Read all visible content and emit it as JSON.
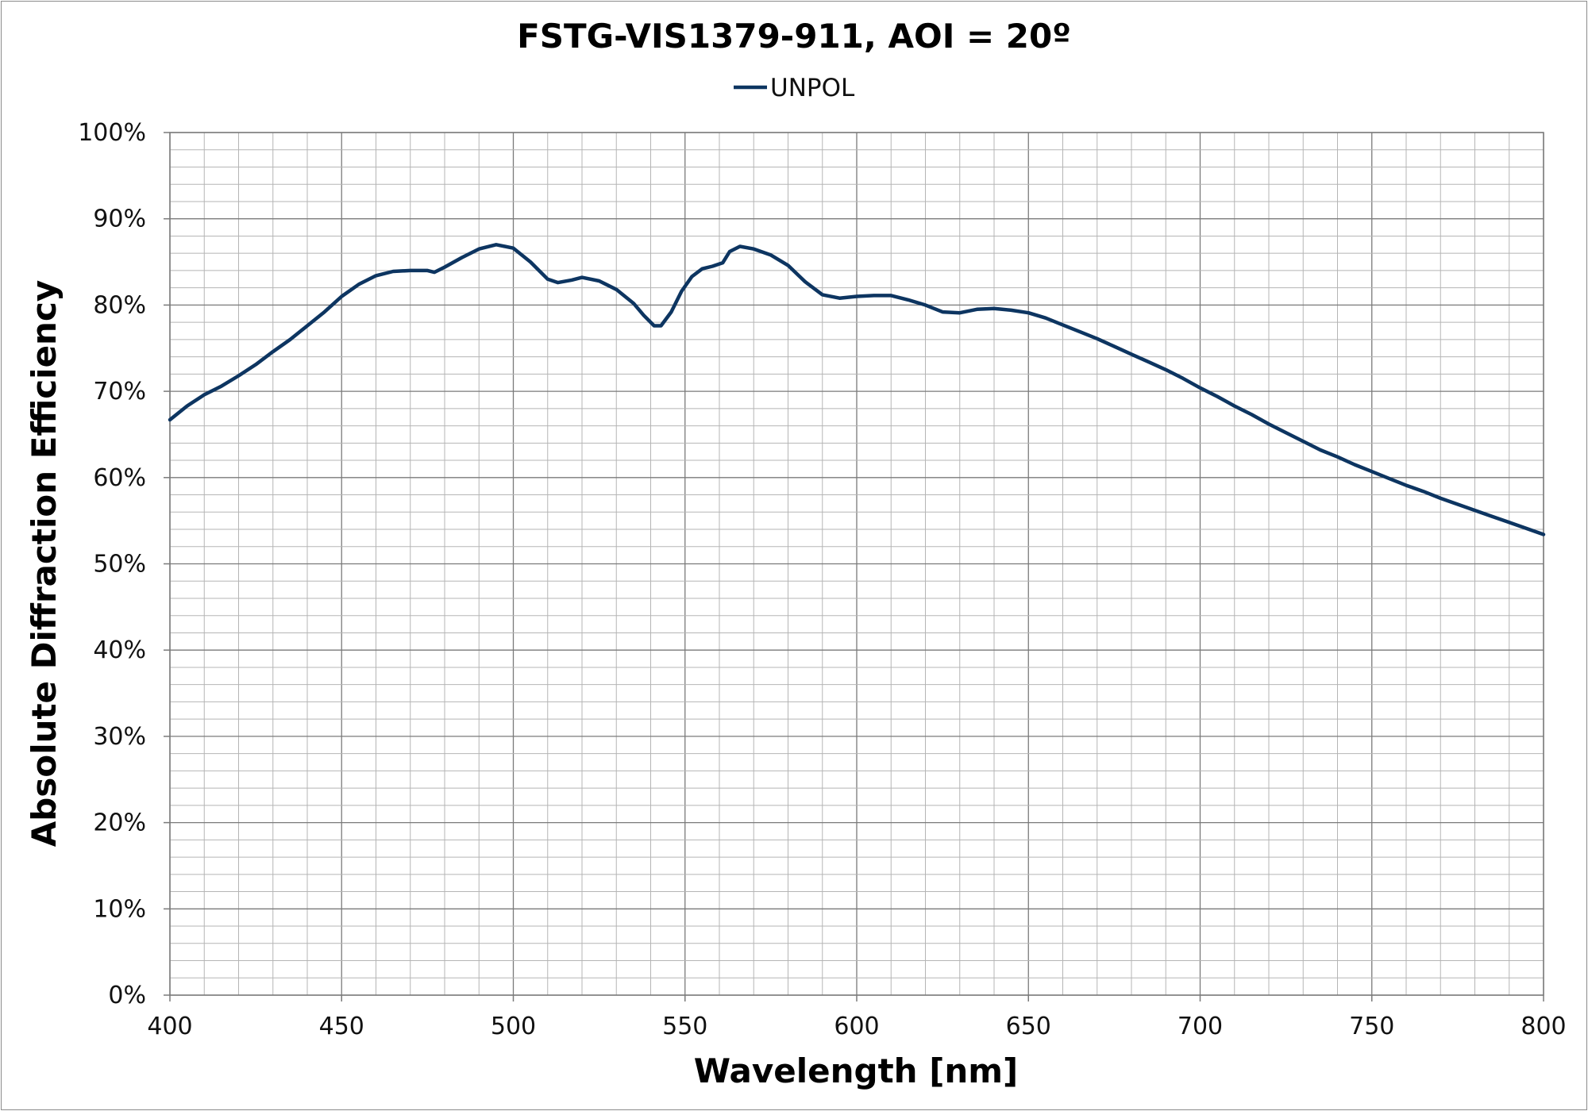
{
  "chart_data": {
    "type": "line",
    "title": "FSTG-VIS1379-911, AOI = 20º",
    "xlabel": "Wavelength [nm]",
    "ylabel": "Absolute Diffraction Efficiency",
    "xlim": [
      400,
      800
    ],
    "ylim": [
      0,
      100
    ],
    "x_ticks": [
      "400",
      "450",
      "500",
      "550",
      "600",
      "650",
      "700",
      "750",
      "800"
    ],
    "y_ticks": [
      "0%",
      "10%",
      "20%",
      "30%",
      "40%",
      "50%",
      "60%",
      "70%",
      "80%",
      "90%",
      "100%"
    ],
    "grid": true,
    "legend_position": "top-center",
    "series": [
      {
        "name": "UNPOL",
        "color": "#0d3561",
        "points": [
          [
            400,
            66.7
          ],
          [
            405,
            68.3
          ],
          [
            410,
            69.6
          ],
          [
            415,
            70.6
          ],
          [
            420,
            71.8
          ],
          [
            425,
            73.1
          ],
          [
            430,
            74.6
          ],
          [
            435,
            76.0
          ],
          [
            440,
            77.6
          ],
          [
            445,
            79.2
          ],
          [
            450,
            81.0
          ],
          [
            455,
            82.4
          ],
          [
            460,
            83.4
          ],
          [
            465,
            83.9
          ],
          [
            470,
            84.0
          ],
          [
            475,
            84.0
          ],
          [
            477,
            83.8
          ],
          [
            480,
            84.4
          ],
          [
            485,
            85.5
          ],
          [
            490,
            86.5
          ],
          [
            495,
            87.0
          ],
          [
            500,
            86.6
          ],
          [
            505,
            85.0
          ],
          [
            510,
            83.0
          ],
          [
            513,
            82.6
          ],
          [
            517,
            82.9
          ],
          [
            520,
            83.2
          ],
          [
            525,
            82.8
          ],
          [
            530,
            81.8
          ],
          [
            535,
            80.2
          ],
          [
            538,
            78.8
          ],
          [
            541,
            77.6
          ],
          [
            543,
            77.6
          ],
          [
            546,
            79.2
          ],
          [
            549,
            81.6
          ],
          [
            552,
            83.3
          ],
          [
            555,
            84.2
          ],
          [
            558,
            84.5
          ],
          [
            561,
            84.9
          ],
          [
            563,
            86.2
          ],
          [
            566,
            86.8
          ],
          [
            570,
            86.5
          ],
          [
            575,
            85.8
          ],
          [
            580,
            84.6
          ],
          [
            585,
            82.7
          ],
          [
            590,
            81.2
          ],
          [
            595,
            80.8
          ],
          [
            600,
            81.0
          ],
          [
            605,
            81.1
          ],
          [
            610,
            81.1
          ],
          [
            615,
            80.6
          ],
          [
            620,
            80.0
          ],
          [
            625,
            79.2
          ],
          [
            630,
            79.1
          ],
          [
            635,
            79.5
          ],
          [
            640,
            79.6
          ],
          [
            645,
            79.4
          ],
          [
            650,
            79.1
          ],
          [
            655,
            78.5
          ],
          [
            660,
            77.7
          ],
          [
            665,
            76.9
          ],
          [
            670,
            76.1
          ],
          [
            675,
            75.2
          ],
          [
            680,
            74.3
          ],
          [
            685,
            73.4
          ],
          [
            690,
            72.5
          ],
          [
            695,
            71.5
          ],
          [
            700,
            70.4
          ],
          [
            705,
            69.4
          ],
          [
            710,
            68.3
          ],
          [
            715,
            67.3
          ],
          [
            720,
            66.2
          ],
          [
            725,
            65.2
          ],
          [
            730,
            64.2
          ],
          [
            735,
            63.2
          ],
          [
            740,
            62.4
          ],
          [
            745,
            61.5
          ],
          [
            750,
            60.7
          ],
          [
            755,
            59.9
          ],
          [
            760,
            59.1
          ],
          [
            765,
            58.4
          ],
          [
            770,
            57.6
          ],
          [
            775,
            56.9
          ],
          [
            780,
            56.2
          ],
          [
            785,
            55.5
          ],
          [
            790,
            54.8
          ],
          [
            795,
            54.1
          ],
          [
            800,
            53.4
          ]
        ]
      }
    ]
  }
}
